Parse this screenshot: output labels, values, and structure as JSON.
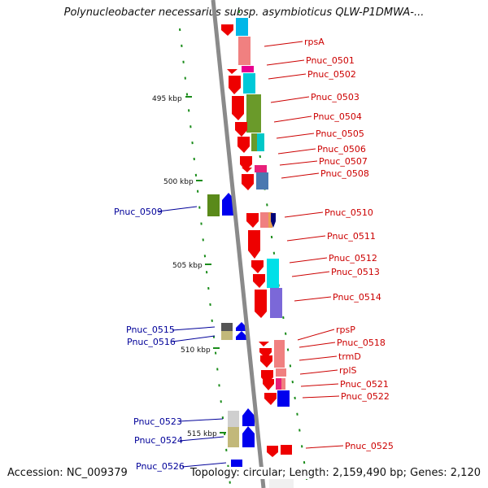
{
  "title": "Polynucleobacter necessarius subsp. asymbioticus QLW-P1DMWA-...",
  "footer": {
    "accession": "Accession: NC_009379",
    "topology": "Topology: circular; Length: 2,159,490 bp; Genes: 2,120"
  },
  "scale_labels": [
    "495 kbp",
    "500 kbp",
    "505 kbp",
    "510 kbp",
    "515 kbp"
  ],
  "genes_right": [
    "rpsA",
    "Pnuc_0501",
    "Pnuc_0502",
    "Pnuc_0503",
    "Pnuc_0504",
    "Pnuc_0505",
    "Pnuc_0506",
    "Pnuc_0507",
    "Pnuc_0508",
    "Pnuc_0510",
    "Pnuc_0511",
    "Pnuc_0512",
    "Pnuc_0513",
    "Pnuc_0514",
    "rpsP",
    "Pnuc_0518",
    "trmD",
    "rplS",
    "Pnuc_0521",
    "Pnuc_0522",
    "Pnuc_0525"
  ],
  "genes_left": [
    "Pnuc_0509",
    "Pnuc_0515",
    "Pnuc_0516",
    "Pnuc_0523",
    "Pnuc_0524",
    "Pnuc_0526"
  ],
  "colors": {
    "forward_strand": "#ee0000",
    "reverse_strand": "#0000ee",
    "forward_label": "#cc0000",
    "reverse_label": "#000099",
    "backbone": "#888888",
    "tick": "#1a8c1a"
  }
}
